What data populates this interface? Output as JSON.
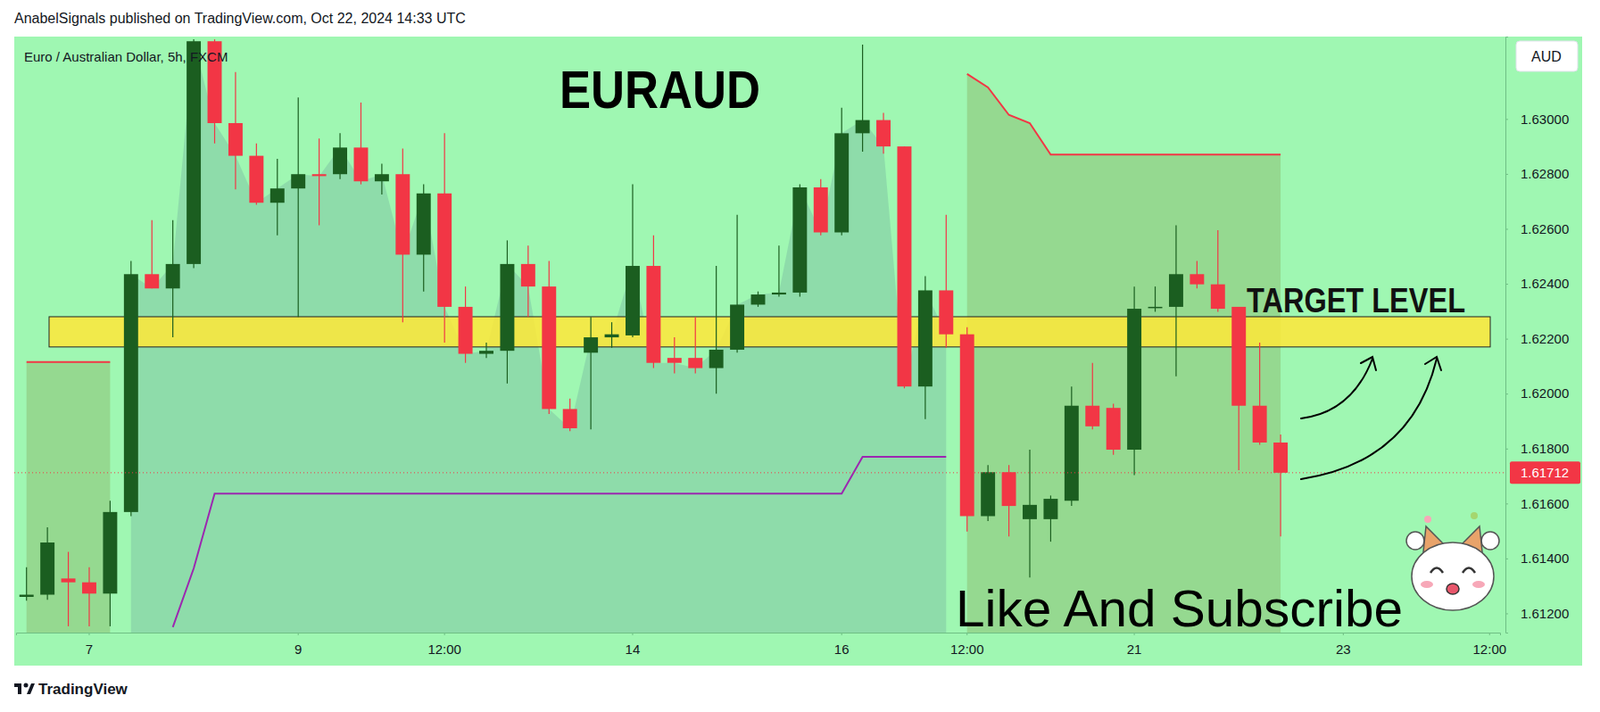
{
  "chart_data": {
    "type": "candlestick",
    "header": "AnabelSignals published on TradingView.com, Oct 22, 2024 14:33 UTC",
    "title": "EURAUD",
    "subtitle": "Euro / Australian Dollar, 5h, FXCM",
    "currency": "AUD",
    "footer": "TradingView",
    "annotations": [
      {
        "text": "TARGET LEVEL"
      },
      {
        "text": "Like And Subscribe"
      }
    ],
    "target_zone": [
      1.6217,
      1.6228
    ],
    "last_price": {
      "value": 1.61712,
      "label": "1.61712"
    },
    "colors": {
      "up": "#1b5e20",
      "down": "#f23645"
    },
    "grid": false,
    "categories": [
      null,
      null,
      null,
      "7",
      null,
      null,
      null,
      null,
      null,
      null,
      null,
      null,
      null,
      "9",
      null,
      null,
      null,
      null,
      null,
      null,
      "12:00",
      null,
      null,
      null,
      null,
      null,
      null,
      null,
      null,
      "14",
      null,
      null,
      null,
      null,
      null,
      null,
      null,
      null,
      null,
      "16",
      null,
      null,
      null,
      null,
      null,
      "12:00",
      null,
      null,
      null,
      null,
      null,
      null,
      null,
      "21",
      null,
      null,
      null,
      null,
      null,
      null,
      null,
      null,
      null,
      "23",
      null,
      null,
      null,
      null,
      null,
      null,
      "12:00"
    ],
    "open": [
      1.6126,
      1.61268,
      1.61327,
      1.61313,
      1.61272,
      1.61569,
      1.62435,
      1.62383,
      1.62472,
      1.63283,
      1.62985,
      1.62866,
      1.62695,
      1.62747,
      1.62799,
      1.62799,
      1.62896,
      1.62773,
      1.62799,
      1.62506,
      1.62729,
      1.62316,
      1.62145,
      1.62156,
      1.62472,
      1.6239,
      1.61944,
      1.62149,
      1.62205,
      1.62212,
      1.62465,
      1.6213,
      1.6213,
      1.62093,
      1.6216,
      1.62324,
      1.62361,
      1.62368,
      1.62751,
      1.62587,
      1.62948,
      1.62996,
      1.629,
      1.62026,
      1.62376,
      1.62216,
      1.61554,
      1.61714,
      1.61543,
      1.61543,
      1.6161,
      1.61956,
      1.61948,
      1.61796,
      1.62312,
      1.62316,
      1.62435,
      1.62398,
      1.62316,
      1.61956,
      1.61822,
      null,
      null,
      null,
      null,
      null,
      null,
      null,
      null,
      null,
      null
    ],
    "high": [
      1.61368,
      1.61513,
      1.61424,
      1.61368,
      1.6161,
      1.62483,
      1.62632,
      1.62632,
      1.6329,
      1.6329,
      1.63171,
      1.62911,
      1.62855,
      1.63078,
      1.62929,
      1.62948,
      1.6306,
      1.62837,
      1.62892,
      1.62762,
      1.62948,
      1.6239,
      1.62186,
      1.62558,
      1.62539,
      1.62483,
      1.61982,
      1.62279,
      1.6226,
      1.62762,
      1.62576,
      1.62205,
      1.62279,
      1.62465,
      1.62651,
      1.62372,
      1.62539,
      1.62762,
      1.62781,
      1.63041,
      1.63271,
      1.63022,
      1.629,
      1.62428,
      1.62651,
      1.62242,
      1.6174,
      1.6174,
      1.61796,
      1.61629,
      1.62026,
      1.62112,
      1.61963,
      1.6239,
      1.6239,
      1.62613,
      1.62483,
      1.62595,
      1.62316,
      1.62186,
      1.61851,
      null,
      null,
      null,
      null,
      null,
      null,
      null,
      null,
      null,
      null
    ],
    "low": [
      1.61246,
      1.61249,
      1.61153,
      1.61153,
      1.61153,
      1.61554,
      1.62383,
      1.62205,
      1.62457,
      1.62911,
      1.62744,
      1.62688,
      1.62576,
      1.62279,
      1.62613,
      1.62781,
      1.62762,
      1.62725,
      1.6226,
      1.62372,
      1.62186,
      1.62112,
      1.6213,
      1.62037,
      1.62279,
      1.61926,
      1.61863,
      1.6187,
      1.62167,
      1.62205,
      1.62093,
      1.62074,
      1.62074,
      1.62,
      1.62149,
      1.62316,
      1.62353,
      1.62353,
      1.62576,
      1.62576,
      1.62881,
      1.62874,
      1.62019,
      1.61907,
      1.62167,
      1.61498,
      1.61536,
      1.6148,
      1.61331,
      1.61461,
      1.61591,
      1.6187,
      1.61777,
      1.61703,
      1.62298,
      1.62063,
      1.62383,
      1.62298,
      1.61721,
      1.61814,
      1.6148,
      null,
      null,
      null,
      null,
      null,
      null,
      null,
      null,
      null,
      null
    ],
    "close": [
      1.61268,
      1.61458,
      1.61313,
      1.61272,
      1.61569,
      1.62435,
      1.62383,
      1.62472,
      1.63283,
      1.62985,
      1.62866,
      1.62695,
      1.62747,
      1.62799,
      1.62792,
      1.62896,
      1.62773,
      1.62799,
      1.62506,
      1.62729,
      1.62316,
      1.62145,
      1.62156,
      1.62472,
      1.6239,
      1.61944,
      1.61874,
      1.62205,
      1.62216,
      1.62465,
      1.62112,
      1.62112,
      1.62093,
      1.6216,
      1.62324,
      1.62361,
      1.62368,
      1.62751,
      1.62587,
      1.62948,
      1.62996,
      1.629,
      1.62026,
      1.62376,
      1.62216,
      1.61554,
      1.61714,
      1.61591,
      1.61595,
      1.61617,
      1.61956,
      1.61881,
      1.61796,
      1.62309,
      1.62316,
      1.62435,
      1.62398,
      1.62309,
      1.61956,
      1.61822,
      1.61712,
      null,
      null,
      null,
      null,
      null,
      null,
      null,
      null,
      null,
      null
    ],
    "series": [
      {
        "type": "area",
        "color": "#6aa69a",
        "values": [
          null,
          null,
          null,
          null,
          null,
          1.62435,
          1.62383,
          1.62472,
          1.63283,
          1.62985,
          1.62866,
          1.62695,
          1.62747,
          1.62799,
          1.62792,
          1.62896,
          1.62773,
          1.62799,
          1.62506,
          1.62729,
          1.62316,
          1.62145,
          1.62156,
          1.62472,
          1.6239,
          1.61944,
          1.61874,
          1.62205,
          1.62216,
          1.62465,
          1.62112,
          1.62112,
          1.62093,
          1.6216,
          1.62324,
          1.62361,
          1.62368,
          1.62751,
          1.62587,
          1.62948,
          1.62996,
          1.629,
          1.62026,
          1.62376,
          1.62216,
          null,
          null,
          null,
          null,
          null,
          null,
          null,
          null,
          null,
          null,
          null,
          null,
          null,
          null,
          null,
          null,
          null,
          null,
          null,
          null,
          null,
          null,
          null,
          null,
          null,
          null
        ]
      },
      {
        "type": "area",
        "color": "#7f9a4a",
        "values": [
          1.62115,
          1.62115,
          1.62115,
          1.62115,
          1.62115,
          null,
          null,
          null,
          null,
          null,
          null,
          null,
          null,
          null,
          null,
          null,
          null,
          null,
          null,
          null,
          null,
          null,
          null,
          null,
          null,
          null,
          null,
          null,
          null,
          null,
          null,
          null,
          null,
          null,
          null,
          null,
          null,
          null,
          null,
          null,
          null,
          null,
          null,
          null,
          null,
          1.63164,
          1.63115,
          1.63015,
          1.62985,
          1.6287,
          1.6287,
          1.6287,
          1.6287,
          1.6287,
          1.6287,
          1.6287,
          1.6287,
          1.6287,
          1.6287,
          1.6287,
          1.6287,
          null,
          null,
          null,
          null,
          null,
          null,
          null,
          null,
          null,
          null
        ]
      },
      {
        "type": "line",
        "color": "#f23645",
        "values": [
          1.62115,
          1.62115,
          1.62115,
          1.62115,
          1.62115,
          null,
          null,
          null,
          null,
          null,
          null,
          null,
          null,
          null,
          null,
          null,
          null,
          null,
          null,
          null,
          null,
          null,
          null,
          null,
          null,
          null,
          null,
          null,
          null,
          null,
          null,
          null,
          null,
          null,
          null,
          null,
          null,
          null,
          null,
          null,
          null,
          null,
          null,
          null,
          null,
          1.63164,
          1.63115,
          1.63015,
          1.62985,
          1.6287,
          1.6287,
          1.6287,
          1.6287,
          1.6287,
          1.6287,
          1.6287,
          1.6287,
          1.6287,
          1.6287,
          1.6287,
          1.6287,
          null,
          null,
          null,
          null,
          null,
          null,
          null,
          null,
          null,
          null
        ]
      },
      {
        "type": "line",
        "color": "#9c27b0",
        "values": [
          null,
          null,
          null,
          null,
          null,
          null,
          null,
          1.6115,
          1.61364,
          1.61636,
          1.61636,
          1.61636,
          1.61636,
          1.61636,
          1.61636,
          1.61636,
          1.61636,
          1.61636,
          1.61636,
          1.61636,
          1.61636,
          1.61636,
          1.61636,
          1.61636,
          1.61636,
          1.61636,
          1.61636,
          1.61636,
          1.61636,
          1.61636,
          1.61636,
          1.61636,
          1.61636,
          1.61636,
          1.61636,
          1.61636,
          1.61636,
          1.61636,
          1.61636,
          1.61636,
          1.6177,
          1.6177,
          1.6177,
          1.6177,
          1.6177,
          null,
          null,
          null,
          null,
          null,
          null,
          null,
          null,
          null,
          null,
          null,
          null,
          null,
          null,
          null,
          null,
          null,
          null,
          null,
          null,
          null,
          null,
          null,
          null,
          null,
          null
        ]
      }
    ],
    "ylim": [
      1.6113,
      1.633
    ],
    "yticks": [
      {
        "value": 1.612,
        "label": "1.61200"
      },
      {
        "value": 1.614,
        "label": "1.61400"
      },
      {
        "value": 1.616,
        "label": "1.61600"
      },
      {
        "value": 1.618,
        "label": "1.61800"
      },
      {
        "value": 1.62,
        "label": "1.62000"
      },
      {
        "value": 1.622,
        "label": "1.62200"
      },
      {
        "value": 1.624,
        "label": "1.62400"
      },
      {
        "value": 1.626,
        "label": "1.62600"
      },
      {
        "value": 1.628,
        "label": "1.62800"
      },
      {
        "value": 1.63,
        "label": "1.63000"
      }
    ]
  }
}
